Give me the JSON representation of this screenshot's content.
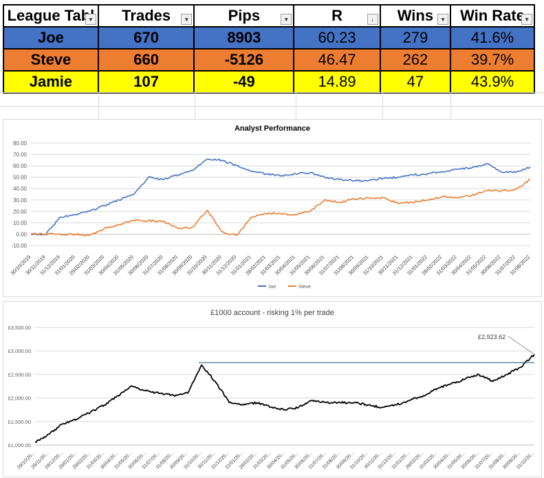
{
  "league_table": {
    "headers": [
      "League Tabl",
      "Trades",
      "Pips",
      "R",
      "Wins",
      "Win Rate"
    ],
    "sort_indicator": "↓",
    "rows": [
      {
        "name": "Joe",
        "trades": "670",
        "pips": "8903",
        "r": "60.23",
        "wins": "279",
        "win_rate": "41.6%",
        "color": "#4472c4"
      },
      {
        "name": "Steve",
        "trades": "660",
        "pips": "-5126",
        "r": "46.47",
        "wins": "262",
        "win_rate": "39.7%",
        "color": "#ed7d31"
      },
      {
        "name": "Jamie",
        "trades": "107",
        "pips": "-49",
        "r": "14.89",
        "wins": "47",
        "win_rate": "43.9%",
        "color": "#ffff00"
      }
    ]
  },
  "chart_data": [
    {
      "type": "line",
      "title": "Analyst Performance",
      "ylim": [
        -10,
        80
      ],
      "yticks": [
        "-10.00",
        "0.00",
        "10.00",
        "20.00",
        "30.00",
        "40.00",
        "50.00",
        "60.00",
        "70.00",
        "80.00"
      ],
      "x": [
        "30/10/2019",
        "30/11/2019",
        "31/12/2019",
        "31/01/2020",
        "29/02/2020",
        "31/03/2020",
        "30/04/2020",
        "31/05/2020",
        "30/06/2020",
        "31/07/2020",
        "31/08/2020",
        "30/09/2020",
        "31/10/2020",
        "30/11/2020",
        "31/12/2020",
        "31/01/2021",
        "28/02/2021",
        "31/03/2021",
        "30/04/2021",
        "31/05/2021",
        "30/06/2021",
        "31/07/2021",
        "31/08/2021",
        "30/09/2021",
        "31/10/2021",
        "30/11/2021",
        "31/12/2021",
        "31/01/2022",
        "28/02/2022",
        "31/03/2022",
        "30/04/2022",
        "31/05/2022",
        "30/06/2022",
        "31/07/2022",
        "31/08/2022"
      ],
      "series": [
        {
          "name": "Joe",
          "color": "#4472c4",
          "values": [
            0,
            0,
            15,
            17,
            20,
            25,
            30,
            35,
            50,
            48,
            52,
            56,
            66,
            65,
            60,
            55,
            53,
            51,
            53,
            54,
            50,
            48,
            47,
            47,
            49,
            50,
            52,
            53,
            55,
            57,
            58,
            62,
            55,
            54,
            59
          ]
        },
        {
          "name": "Steve",
          "color": "#ed7d31",
          "values": [
            0,
            0,
            0,
            0,
            -1,
            5,
            8,
            12,
            12,
            11,
            5,
            6,
            21,
            2,
            -1,
            15,
            18,
            18,
            17,
            20,
            30,
            28,
            31,
            32,
            32,
            27,
            28,
            30,
            33,
            32,
            34,
            38,
            38,
            39,
            48
          ]
        }
      ],
      "legend_position": "bottom"
    },
    {
      "type": "line",
      "title": "£1000 account - risking 1% per trade",
      "ylim": [
        1000,
        3500
      ],
      "yticks": [
        "£1,000.00",
        "£1,500.00",
        "£2,000.00",
        "£2,500.00",
        "£3,000.00",
        "£3,500.00"
      ],
      "x": [
        "29/10/20...",
        "29/11/20...",
        "29/12/20...",
        "29/01/20...",
        "29/02/20...",
        "31/03/20...",
        "30/04/20...",
        "31/05/20...",
        "30/06/20...",
        "31/07/20...",
        "31/08/20...",
        "30/09/20...",
        "31/10/20...",
        "30/11/20...",
        "31/12/20...",
        "31/01/20...",
        "28/02/20...",
        "31/03/20...",
        "30/04/20...",
        "31/05/20...",
        "30/06/20...",
        "31/07/20...",
        "31/08/20...",
        "30/09/20...",
        "31/10/20...",
        "30/11/20...",
        "31/12/20...",
        "31/01/20...",
        "28/02/20...",
        "31/03/20...",
        "30/04/20...",
        "31/05/20...",
        "30/06/20...",
        "31/07/20...",
        "31/08/20...",
        "30/09/20...",
        "31/10/20..."
      ],
      "series": [
        {
          "name": "",
          "color": "#000000",
          "values": [
            1060,
            1230,
            1450,
            1550,
            1700,
            1850,
            2050,
            2250,
            2150,
            2100,
            2050,
            2100,
            2700,
            2350,
            1900,
            1850,
            1900,
            1800,
            1750,
            1800,
            1950,
            1900,
            1900,
            1900,
            1850,
            1800,
            1850,
            1950,
            2050,
            2200,
            2300,
            2400,
            2500,
            2350,
            2500,
            2650,
            2923.62
          ]
        }
      ],
      "reference_line": 2750,
      "annotation": "£2,923.62"
    }
  ]
}
